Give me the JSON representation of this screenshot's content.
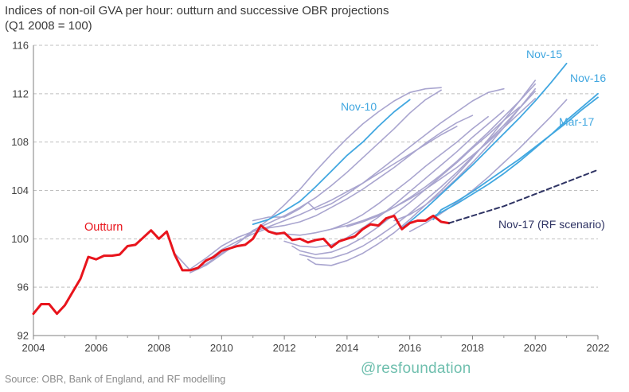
{
  "title_line1": "Indices of non-oil GVA per hour: outturn and successive OBR projections",
  "title_line2": "(Q1 2008 = 100)",
  "source": "Source: OBR, Bank of England, and RF modelling",
  "brand": "@resfoundation",
  "colors": {
    "outturn": "#e8141c",
    "highlight": "#41a7e0",
    "other": "#a9a5cf",
    "scenario": "#2e3363",
    "grid": "#bfbfbf"
  },
  "chart_data": {
    "type": "line",
    "title": "Indices of non-oil GVA per hour: outturn and successive OBR projections (Q1 2008 = 100)",
    "xlim": [
      2004,
      2022
    ],
    "ylim": [
      92,
      116
    ],
    "xticks": [
      "2004",
      "2006",
      "2008",
      "2010",
      "2012",
      "2014",
      "2016",
      "2018",
      "2020",
      "2022"
    ],
    "yticks": [
      "92",
      "96",
      "100",
      "104",
      "108",
      "112",
      "116"
    ],
    "grid": "horizontal dashed",
    "series": [
      {
        "name": "Outturn",
        "role": "outturn",
        "x": [
          2004,
          2004.25,
          2004.5,
          2004.75,
          2005,
          2005.25,
          2005.5,
          2005.75,
          2006,
          2006.25,
          2006.5,
          2006.75,
          2007,
          2007.25,
          2007.5,
          2007.75,
          2008,
          2008.25,
          2008.5,
          2008.75,
          2009,
          2009.25,
          2009.5,
          2009.75,
          2010,
          2010.25,
          2010.5,
          2010.75,
          2011,
          2011.25,
          2011.5,
          2011.75,
          2012,
          2012.25,
          2012.5,
          2012.75,
          2013,
          2013.25,
          2013.5,
          2013.75,
          2014,
          2014.25,
          2014.5,
          2014.75,
          2015,
          2015.25,
          2015.5,
          2015.75,
          2016,
          2016.25,
          2016.5,
          2016.75,
          2017,
          2017.25
        ],
        "y": [
          93.8,
          94.6,
          94.6,
          93.8,
          94.5,
          95.6,
          96.7,
          98.5,
          98.3,
          98.6,
          98.6,
          98.7,
          99.4,
          99.5,
          100.1,
          100.7,
          100.0,
          100.6,
          98.7,
          97.4,
          97.4,
          97.6,
          98.2,
          98.5,
          99.0,
          99.2,
          99.4,
          99.5,
          100.0,
          101.1,
          100.6,
          100.4,
          100.5,
          99.9,
          100.0,
          99.7,
          99.9,
          100.0,
          99.3,
          99.8,
          100.0,
          100.2,
          100.8,
          101.2,
          101.1,
          101.7,
          101.9,
          100.8,
          101.3,
          101.5,
          101.5,
          101.9,
          101.4,
          101.3
        ]
      },
      {
        "name": "Nov-17 (RF scenario)",
        "role": "scenario",
        "x": [
          2017.25,
          2018,
          2019,
          2020,
          2021,
          2022
        ],
        "y": [
          101.3,
          101.9,
          102.7,
          103.7,
          104.7,
          105.7
        ]
      },
      {
        "name": "Nov-10",
        "role": "highlight",
        "x": [
          2011,
          2011.5,
          2012,
          2012.5,
          2013,
          2013.5,
          2014,
          2014.5,
          2015,
          2015.5,
          2016
        ],
        "y": [
          101.2,
          101.6,
          102.3,
          103.1,
          104.3,
          105.6,
          106.9,
          108.0,
          109.3,
          110.5,
          111.5
        ]
      },
      {
        "name": "Nov-15",
        "role": "highlight",
        "x": [
          2015.75,
          2016,
          2016.5,
          2017,
          2017.5,
          2018,
          2018.5,
          2019,
          2019.5,
          2020,
          2020.5,
          2021
        ],
        "y": [
          100.9,
          101.4,
          102.5,
          103.7,
          104.9,
          106.1,
          107.4,
          108.7,
          110.0,
          111.4,
          112.9,
          114.5
        ]
      },
      {
        "name": "Nov-16",
        "role": "highlight",
        "x": [
          2016.5,
          2017,
          2017.5,
          2018,
          2018.5,
          2019,
          2019.5,
          2020,
          2020.5,
          2021,
          2021.5,
          2022
        ],
        "y": [
          101.5,
          102.2,
          102.9,
          103.7,
          104.5,
          105.4,
          106.4,
          107.5,
          108.6,
          109.8,
          110.9,
          112.0
        ]
      },
      {
        "name": "Mar-17",
        "role": "highlight",
        "x": [
          2016.75,
          2017,
          2017.5,
          2018,
          2018.5,
          2019,
          2019.5,
          2020,
          2020.5,
          2021,
          2021.5,
          2022
        ],
        "y": [
          101.6,
          102.4,
          103.1,
          103.9,
          104.8,
          105.7,
          106.6,
          107.6,
          108.6,
          109.6,
          110.7,
          111.7
        ]
      },
      {
        "role": "other",
        "x": [
          2008.5,
          2009,
          2009.5,
          2010,
          2010.5,
          2011,
          2011.5,
          2012,
          2012.5,
          2013,
          2013.5,
          2014,
          2014.5,
          2015,
          2015.5,
          2016,
          2016.5,
          2017
        ],
        "y": [
          98.8,
          97.4,
          97.9,
          98.8,
          99.6,
          100.6,
          101.6,
          102.8,
          104.1,
          105.6,
          107.0,
          108.3,
          109.5,
          110.5,
          111.4,
          112.1,
          112.4,
          112.5
        ]
      },
      {
        "role": "other",
        "x": [
          2009,
          2009.5,
          2010,
          2010.5,
          2011,
          2011.5,
          2012,
          2012.5,
          2013,
          2013.5,
          2014,
          2014.5,
          2015,
          2015.5,
          2016,
          2016.5,
          2017
        ],
        "y": [
          97.2,
          97.8,
          98.7,
          99.6,
          100.7,
          101.3,
          101.9,
          102.6,
          103.4,
          104.4,
          105.5,
          106.7,
          107.9,
          109.1,
          110.4,
          111.5,
          112.3
        ]
      },
      {
        "role": "other",
        "x": [
          2009,
          2009.5,
          2010,
          2010.5,
          2011,
          2011.5,
          2012,
          2012.5,
          2013,
          2013.5,
          2014,
          2014.5,
          2015,
          2015.5,
          2016,
          2016.5,
          2017,
          2017.5
        ],
        "y": [
          97.5,
          98.4,
          99.4,
          100.1,
          100.6,
          101.0,
          101.5,
          102.0,
          102.6,
          103.2,
          103.9,
          104.6,
          105.4,
          106.2,
          107.0,
          107.8,
          108.6,
          109.3
        ]
      },
      {
        "role": "other",
        "x": [
          2009.5,
          2010,
          2010.5,
          2011,
          2011.5,
          2012,
          2012.5,
          2013,
          2013.5,
          2014,
          2014.5,
          2015,
          2015.5,
          2016,
          2016.5,
          2017,
          2017.5,
          2018
        ],
        "y": [
          98.1,
          99.1,
          99.8,
          100.4,
          100.9,
          101.1,
          101.4,
          101.9,
          102.6,
          103.3,
          104.1,
          105.0,
          105.9,
          106.9,
          107.9,
          108.8,
          109.6,
          110.2
        ]
      },
      {
        "role": "other",
        "x": [
          2011,
          2011.5,
          2012,
          2012.5,
          2012.75,
          2013,
          2013.5,
          2014,
          2014.5,
          2015,
          2015.5,
          2016,
          2016.5,
          2017,
          2017.5,
          2018,
          2018.5,
          2019
        ],
        "y": [
          101.5,
          101.8,
          101.8,
          102.5,
          103.0,
          102.4,
          102.9,
          103.7,
          104.6,
          105.6,
          106.6,
          107.6,
          108.6,
          109.6,
          110.5,
          111.4,
          112.1,
          112.4
        ]
      },
      {
        "role": "other",
        "x": [
          2011.5,
          2012,
          2012.5,
          2013,
          2013.5,
          2014,
          2014.5,
          2015,
          2015.5,
          2016,
          2016.5,
          2017,
          2017.5,
          2018,
          2018.5
        ],
        "y": [
          100.6,
          100.4,
          100.3,
          100.5,
          100.8,
          101.3,
          102.0,
          102.9,
          103.9,
          104.9,
          106.0,
          107.0,
          108.0,
          109.1,
          110.1
        ]
      },
      {
        "role": "other",
        "x": [
          2012,
          2012.5,
          2013,
          2013.5,
          2014,
          2014.5,
          2015,
          2015.5,
          2016,
          2016.5,
          2017,
          2017.5,
          2018,
          2018.5,
          2019
        ],
        "y": [
          99.8,
          99.4,
          99.3,
          99.5,
          100.1,
          100.9,
          101.8,
          102.8,
          103.9,
          105.0,
          106.1,
          107.2,
          108.4,
          109.5,
          110.6
        ]
      },
      {
        "role": "other",
        "x": [
          2012.25,
          2012.5,
          2013,
          2013.5,
          2014,
          2014.5,
          2015,
          2015.5,
          2016,
          2016.5,
          2017,
          2017.5,
          2018,
          2018.5,
          2019,
          2019.5
        ],
        "y": [
          99.4,
          99.0,
          98.7,
          98.9,
          99.4,
          100.1,
          101.0,
          102.0,
          103.0,
          104.1,
          105.2,
          106.3,
          107.5,
          108.6,
          109.8,
          110.9
        ]
      },
      {
        "role": "other",
        "x": [
          2012.5,
          2013,
          2013.5,
          2014,
          2014.5,
          2015,
          2015.5,
          2016,
          2016.5,
          2017,
          2017.5,
          2018,
          2018.5,
          2019,
          2019.5,
          2020
        ],
        "y": [
          98.7,
          98.4,
          98.4,
          98.8,
          99.4,
          100.2,
          101.1,
          102.1,
          103.2,
          104.3,
          105.5,
          106.8,
          108.1,
          109.4,
          110.8,
          112.2
        ]
      },
      {
        "role": "other",
        "x": [
          2012.75,
          2013,
          2013.5,
          2014,
          2014.5,
          2015,
          2015.5,
          2016,
          2016.5,
          2017,
          2017.5,
          2018,
          2018.5,
          2019,
          2019.5,
          2020
        ],
        "y": [
          98.3,
          97.9,
          97.8,
          98.2,
          98.8,
          99.6,
          100.5,
          101.6,
          102.8,
          104.0,
          105.3,
          106.7,
          108.2,
          109.8,
          111.4,
          113.1
        ]
      },
      {
        "role": "other",
        "x": [
          2013.5,
          2014,
          2014.5,
          2015,
          2015.5,
          2016,
          2016.5,
          2017,
          2017.5,
          2018,
          2018.5,
          2019,
          2019.5,
          2020
        ],
        "y": [
          100.8,
          101.1,
          101.5,
          102.0,
          102.6,
          103.3,
          104.1,
          105.0,
          105.9,
          106.9,
          108.0,
          109.2,
          110.4,
          111.6
        ]
      },
      {
        "role": "other",
        "x": [
          2014,
          2014.5,
          2015,
          2015.5,
          2016,
          2016.5,
          2017,
          2017.5,
          2018,
          2018.5,
          2019,
          2019.5,
          2020
        ],
        "y": [
          101.0,
          101.4,
          101.9,
          102.6,
          103.4,
          104.3,
          105.3,
          106.4,
          107.6,
          108.8,
          110.1,
          111.4,
          112.8
        ]
      },
      {
        "role": "other",
        "x": [
          2015.5,
          2016,
          2016.5,
          2017,
          2017.5,
          2018,
          2018.5,
          2019,
          2019.5,
          2020
        ],
        "y": [
          101.5,
          102.0,
          102.8,
          103.8,
          105.0,
          106.3,
          107.7,
          109.2,
          110.8,
          112.4
        ]
      },
      {
        "role": "other",
        "x": [
          2016,
          2016.5,
          2017,
          2017.5,
          2018,
          2018.5,
          2019,
          2019.5,
          2020,
          2020.5,
          2021
        ],
        "y": [
          100.6,
          101.3,
          102.1,
          103.0,
          104.0,
          105.1,
          106.3,
          107.5,
          108.8,
          110.1,
          111.5
        ]
      }
    ],
    "annotations": [
      {
        "text": "Outturn",
        "role": "outturn"
      },
      {
        "text": "Nov-10",
        "role": "highlight"
      },
      {
        "text": "Nov-15",
        "role": "highlight"
      },
      {
        "text": "Nov-16",
        "role": "highlight"
      },
      {
        "text": "Mar-17",
        "role": "highlight"
      },
      {
        "text": "Nov-17 (RF scenario)",
        "role": "scenario"
      }
    ]
  }
}
